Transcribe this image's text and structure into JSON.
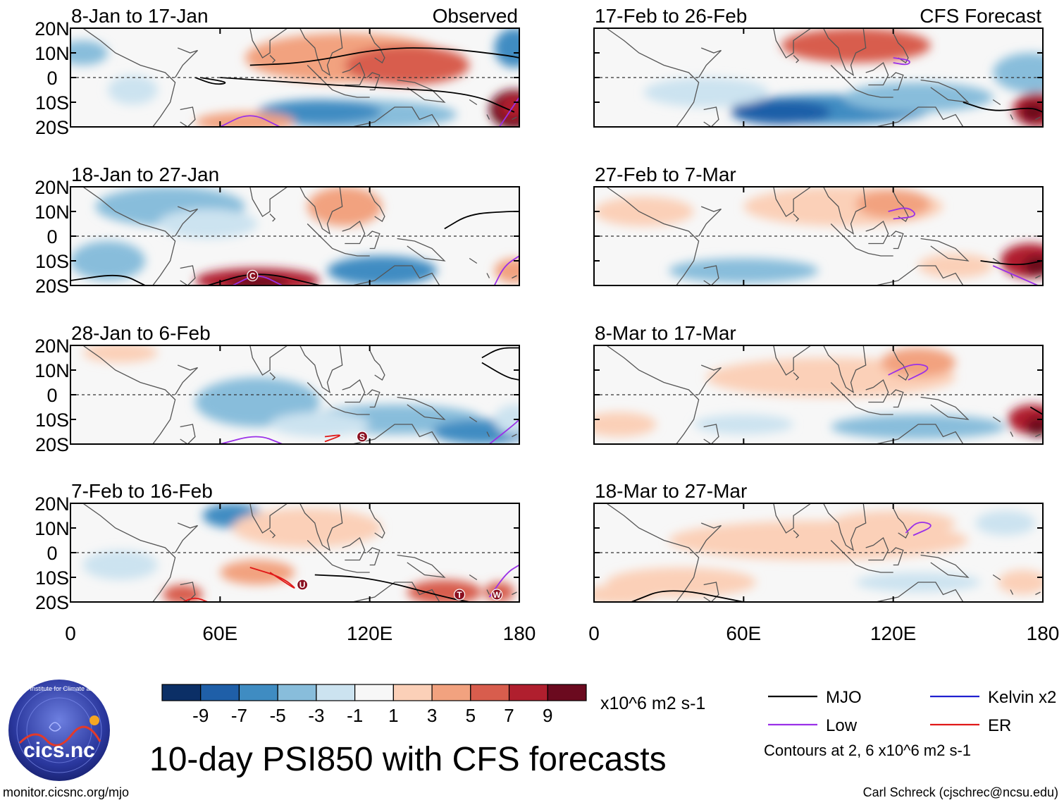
{
  "chart_data": {
    "type": "heatmap",
    "title": "10-day PSI850 with CFS forecasts",
    "variable": "PSI850 anomaly (10-day mean)",
    "units": "x10^6 m2 s-1",
    "x_axis": {
      "ticks": [
        "0",
        "60E",
        "120E",
        "180"
      ],
      "range": [
        0,
        180
      ]
    },
    "y_axis": {
      "ticks": [
        "20N",
        "10N",
        "0",
        "10S",
        "20S"
      ],
      "range": [
        -20,
        20
      ]
    },
    "colorbar": {
      "labels": [
        "-9",
        "-7",
        "-5",
        "-3",
        "-1",
        "1",
        "3",
        "5",
        "7",
        "9"
      ],
      "colors": [
        "#0b2f66",
        "#1f5fa8",
        "#3f8cc2",
        "#88bddb",
        "#cce3f0",
        "#f7f7f7",
        "#fbd0b8",
        "#f2a27f",
        "#d85d4d",
        "#b01f2e",
        "#6b0a1f"
      ]
    },
    "contours": "Contours at 2, 6 x10^6 m2 s-1",
    "legend": [
      {
        "name": "MJO",
        "color": "#000000"
      },
      {
        "name": "Kelvin x2",
        "color": "#2020d0"
      },
      {
        "name": "Low",
        "color": "#9a30e8"
      },
      {
        "name": "ER",
        "color": "#e01818"
      }
    ],
    "panels": [
      {
        "period": "8-Jan to 17-Jan",
        "source": "Observed",
        "labels": []
      },
      {
        "period": "18-Jan to 27-Jan",
        "source": "",
        "labels": [
          "C"
        ]
      },
      {
        "period": "28-Jan to 6-Feb",
        "source": "",
        "labels": [
          "S"
        ]
      },
      {
        "period": "7-Feb to 16-Feb",
        "source": "",
        "labels": [
          "U",
          "T",
          "W"
        ]
      },
      {
        "period": "17-Feb to 26-Feb",
        "source": "CFS Forecast",
        "labels": []
      },
      {
        "period": "27-Feb to 7-Mar",
        "source": "",
        "labels": []
      },
      {
        "period": "8-Mar to 17-Mar",
        "source": "",
        "labels": []
      },
      {
        "period": "18-Mar to 27-Mar",
        "source": "",
        "labels": []
      }
    ]
  },
  "logo": {
    "text": "cics.nc",
    "ring_text": "Cooperative Institute for Climate and Satellites"
  },
  "footer": {
    "left": "monitor.cicsnc.org/mjo",
    "right": "Carl Schreck (cjschrec@ncsu.edu)"
  }
}
